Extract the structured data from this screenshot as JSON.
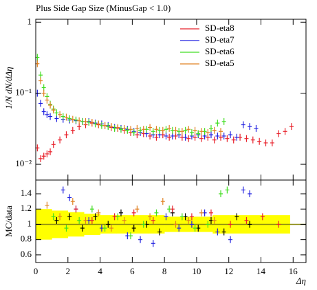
{
  "chart_data": [
    {
      "type": "scatter",
      "title": "Plus Side Gap Size (MinusGap < 1.0)",
      "y_label": "1/N dN/dΔη",
      "log_y": true,
      "ylim": [
        0.006,
        1.1
      ],
      "xlim": [
        0,
        16.8
      ],
      "yticks": [
        1,
        {
          "value": 0.1,
          "label": "10⁻¹"
        },
        {
          "value": 0.01,
          "label": "10⁻²"
        }
      ],
      "xticks": [
        0,
        2,
        4,
        6,
        8,
        10,
        12,
        14,
        16
      ],
      "legend": "top-right",
      "series": [
        {
          "name": "SD-eta8",
          "color": "#e8202a",
          "x": [
            0.1,
            0.3,
            0.5,
            0.7,
            0.9,
            1.1,
            1.5,
            1.9,
            2.3,
            2.7,
            3.1,
            3.5,
            3.9,
            4.3,
            4.7,
            5.1,
            5.5,
            5.9,
            6.3,
            6.7,
            7.1,
            7.5,
            7.9,
            8.3,
            8.7,
            9.1,
            9.5,
            9.9,
            10.3,
            10.7,
            11.1,
            11.5,
            11.9,
            12.3,
            12.7,
            13.1,
            13.5,
            13.9,
            14.3,
            14.7,
            15.1,
            15.5,
            15.9
          ],
          "values": [
            0.017,
            0.012,
            0.013,
            0.014,
            0.015,
            0.019,
            0.022,
            0.026,
            0.03,
            0.034,
            0.036,
            0.038,
            0.036,
            0.035,
            0.033,
            0.032,
            0.03,
            0.028,
            0.026,
            0.027,
            0.025,
            0.024,
            0.026,
            0.024,
            0.025,
            0.024,
            0.023,
            0.024,
            0.023,
            0.024,
            0.022,
            0.024,
            0.023,
            0.022,
            0.024,
            0.023,
            0.022,
            0.021,
            0.02,
            0.02,
            0.027,
            0.029,
            0.034
          ]
        },
        {
          "name": "SD-eta7",
          "color": "#2020e0",
          "x": [
            0.1,
            0.3,
            0.5,
            0.7,
            0.9,
            1.3,
            1.7,
            2.1,
            2.5,
            2.9,
            3.3,
            3.7,
            4.1,
            4.5,
            4.9,
            5.3,
            5.7,
            6.1,
            6.5,
            6.9,
            7.3,
            7.7,
            8.1,
            8.5,
            8.9,
            9.3,
            9.7,
            10.1,
            10.5,
            10.9,
            11.3,
            11.7,
            12.1,
            12.5,
            12.9,
            13.3,
            13.7
          ],
          "values": [
            0.1,
            0.072,
            0.055,
            0.05,
            0.047,
            0.044,
            0.043,
            0.042,
            0.041,
            0.04,
            0.04,
            0.038,
            0.037,
            0.035,
            0.033,
            0.032,
            0.031,
            0.029,
            0.028,
            0.027,
            0.026,
            0.026,
            0.025,
            0.025,
            0.026,
            0.024,
            0.025,
            0.026,
            0.025,
            0.026,
            0.025,
            0.025,
            0.026,
            0.024,
            0.036,
            0.034,
            0.032
          ]
        },
        {
          "name": "SD-eta6",
          "color": "#40dd20",
          "x": [
            0.1,
            0.3,
            0.5,
            0.7,
            0.9,
            1.1,
            1.3,
            1.7,
            2.1,
            2.5,
            2.9,
            3.3,
            3.7,
            4.1,
            4.5,
            4.9,
            5.3,
            5.7,
            6.1,
            6.5,
            6.9,
            7.3,
            7.7,
            8.1,
            8.5,
            8.9,
            9.3,
            9.7,
            10.1,
            10.5,
            10.9,
            11.3,
            11.7
          ],
          "values": [
            0.32,
            0.18,
            0.12,
            0.09,
            0.07,
            0.06,
            0.053,
            0.047,
            0.044,
            0.042,
            0.04,
            0.039,
            0.037,
            0.035,
            0.034,
            0.032,
            0.031,
            0.03,
            0.028,
            0.03,
            0.031,
            0.029,
            0.03,
            0.031,
            0.03,
            0.029,
            0.03,
            0.028,
            0.027,
            0.029,
            0.032,
            0.038,
            0.04
          ]
        },
        {
          "name": "SD-eta5",
          "color": "#e08020",
          "x": [
            0.1,
            0.3,
            0.5,
            0.7,
            0.9,
            1.1,
            1.5,
            1.9,
            2.3,
            2.7,
            3.1,
            3.5,
            3.9,
            4.3,
            4.7,
            5.1,
            5.5,
            5.9,
            6.3,
            6.7,
            7.1,
            7.5,
            7.9,
            8.3,
            8.7,
            9.1,
            9.5,
            9.9,
            10.3,
            10.7,
            11.1,
            11.5
          ],
          "values": [
            0.26,
            0.15,
            0.1,
            0.08,
            0.068,
            0.058,
            0.05,
            0.046,
            0.043,
            0.041,
            0.04,
            0.039,
            0.037,
            0.035,
            0.034,
            0.033,
            0.032,
            0.031,
            0.032,
            0.031,
            0.033,
            0.031,
            0.03,
            0.032,
            0.03,
            0.029,
            0.031,
            0.03,
            0.029,
            0.028,
            0.03,
            0.029
          ]
        }
      ]
    },
    {
      "type": "ratio",
      "y_label": "MC/data",
      "x_label": "Δη",
      "log_y": false,
      "ylim": [
        0.5,
        1.58
      ],
      "xlim": [
        0,
        16.8
      ],
      "yticks": [
        0.6,
        0.8,
        1,
        1.2,
        1.4
      ],
      "xticks": [
        0,
        2,
        4,
        6,
        8,
        10,
        12,
        14,
        16
      ],
      "reference": 1,
      "reference_color": "#8a8a10",
      "band": {
        "color": "#ffff00",
        "bins": [
          0,
          1,
          2,
          3,
          4,
          5,
          6,
          7,
          8,
          9,
          10,
          11,
          12,
          13,
          14,
          15,
          15.8
        ],
        "lower": [
          0.8,
          0.82,
          0.84,
          0.86,
          0.88,
          0.88,
          0.88,
          0.88,
          0.9,
          0.9,
          0.9,
          0.88,
          0.88,
          0.88,
          0.88,
          0.88
        ],
        "upper": [
          1.2,
          1.18,
          1.16,
          1.14,
          1.12,
          1.12,
          1.12,
          1.12,
          1.1,
          1.1,
          1.1,
          1.12,
          1.12,
          1.12,
          1.12,
          1.12
        ]
      },
      "series": [
        {
          "color": "#000000",
          "x": [
            1.3,
            2.1,
            2.9,
            3.7,
            4.5,
            5.3,
            6.1,
            6.9,
            7.7,
            8.5,
            9.3,
            10.1,
            10.9,
            11.7,
            12.5,
            13.3
          ],
          "values": [
            1.05,
            1.1,
            0.95,
            1.1,
            1.0,
            1.15,
            0.95,
            1.0,
            0.9,
            1.15,
            1.1,
            0.95,
            1.05,
            0.9,
            1.1,
            1.0
          ]
        },
        {
          "color": "#2020e0",
          "x": [
            1.7,
            2.1,
            2.5,
            3.3,
            4.1,
            5.7,
            6.5,
            7.3,
            8.1,
            8.9,
            9.7,
            10.5,
            11.3,
            12.1,
            12.9,
            13.3
          ],
          "values": [
            1.45,
            1.35,
            1.2,
            1.05,
            0.95,
            0.85,
            0.8,
            0.75,
            1.1,
            0.95,
            1.0,
            1.15,
            0.9,
            0.8,
            1.45,
            1.4
          ]
        },
        {
          "color": "#40dd20",
          "x": [
            1.1,
            1.9,
            2.7,
            3.5,
            4.3,
            5.1,
            5.9,
            6.7,
            7.5,
            8.3,
            9.1,
            9.9,
            10.7,
            11.5,
            11.9
          ],
          "values": [
            1.1,
            0.95,
            1.05,
            1.2,
            0.95,
            1.1,
            0.85,
            1.0,
            1.15,
            1.2,
            1.1,
            0.95,
            1.0,
            1.4,
            1.45
          ]
        },
        {
          "color": "#e08020",
          "x": [
            0.7,
            1.5,
            2.3,
            3.1,
            3.9,
            4.7,
            5.5,
            6.3,
            7.1,
            7.9,
            8.7,
            9.5,
            10.3,
            11.1
          ],
          "values": [
            1.25,
            1.1,
            1.3,
            1.05,
            1.15,
            0.95,
            1.05,
            1.2,
            1.1,
            1.3,
            1.0,
            1.05,
            1.15,
            1.05
          ]
        },
        {
          "color": "#e8202a",
          "x": [
            2.5,
            3.5,
            4.9,
            6.1,
            7.3,
            8.5,
            9.7,
            10.9,
            12.1,
            13.1,
            14.1,
            15.1
          ],
          "values": [
            1.2,
            1.05,
            1.1,
            1.15,
            1.05,
            1.2,
            1.1,
            1.15,
            1.0,
            1.05,
            1.1,
            1.0
          ]
        }
      ]
    }
  ]
}
